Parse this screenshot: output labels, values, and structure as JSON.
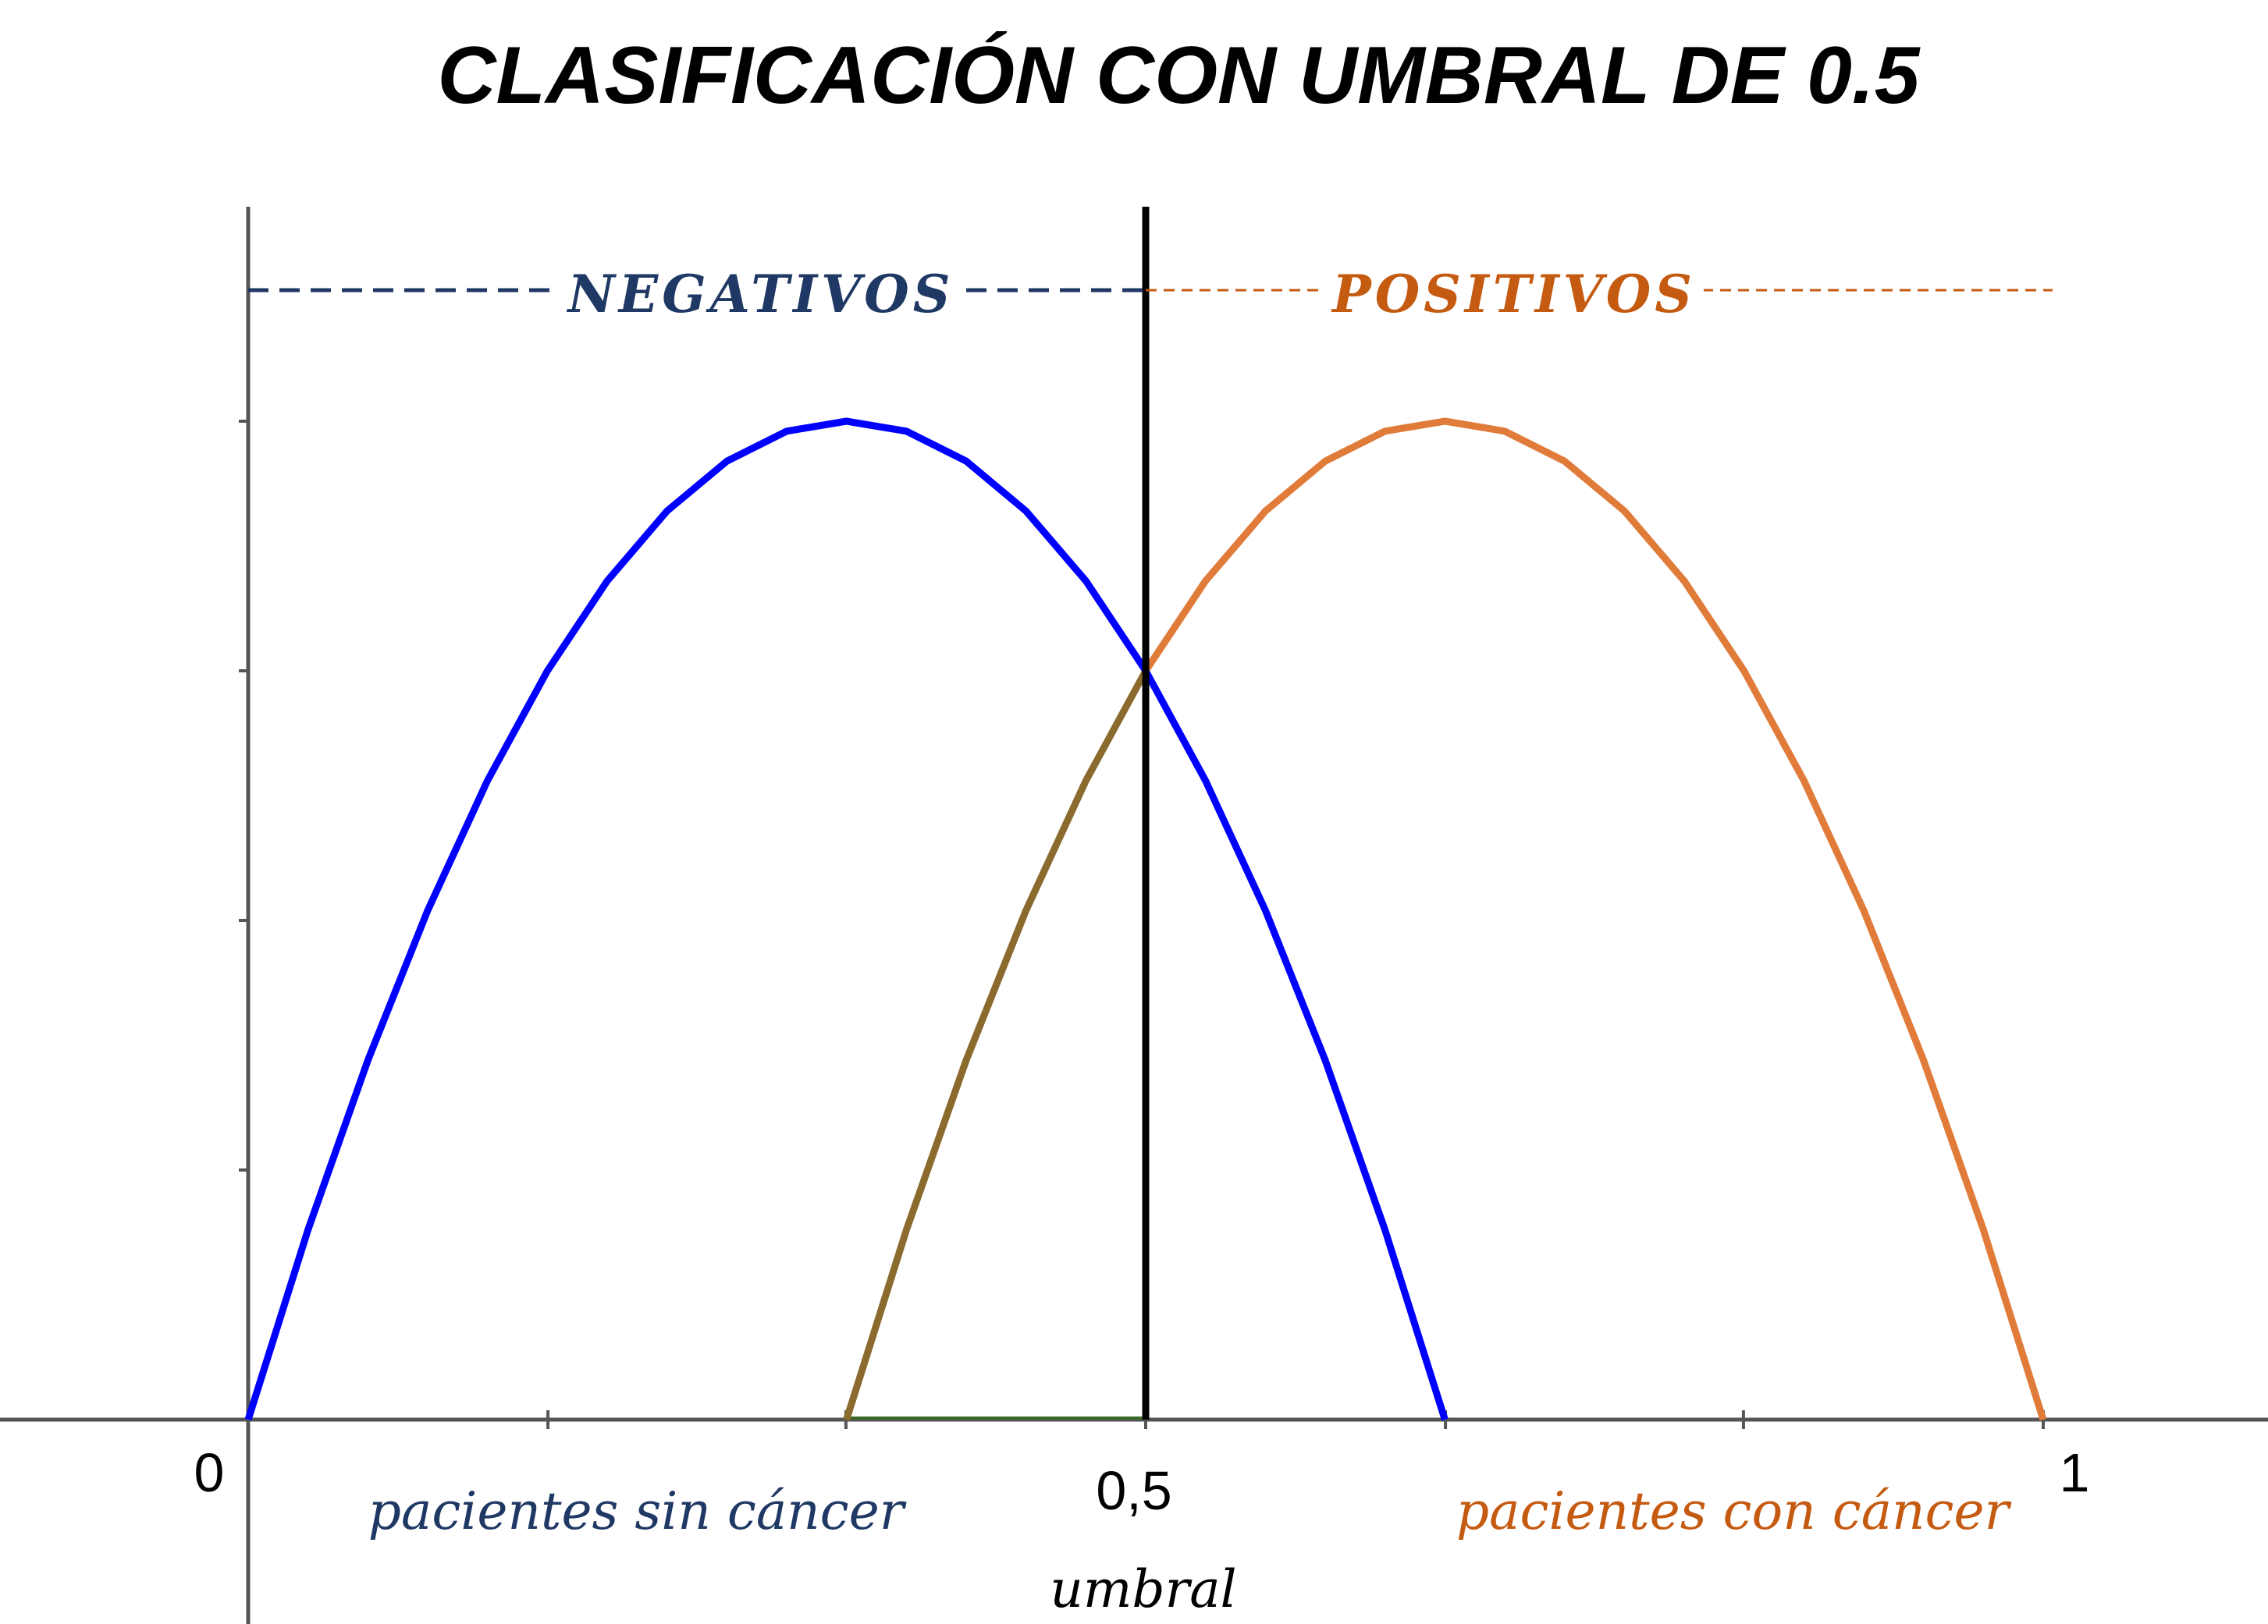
{
  "title": "CLASIFICACIÓN CON UMBRAL DE 0.5",
  "colors": {
    "negative": "#1f3864",
    "positive": "#c55a11",
    "negative_curve": "#0000ff",
    "positive_curve": "#e07b39",
    "overlap_curve": "#8b6a2e",
    "axis": "#555555",
    "threshold": "#000000"
  },
  "chart_data": {
    "type": "line",
    "title": "CLASIFICACIÓN CON UMBRAL DE 0.5",
    "xlim": [
      0,
      1.25
    ],
    "ylim": [
      0,
      1.25
    ],
    "grid": false,
    "legend": "none",
    "x_tick_labels": [
      {
        "x": 0,
        "label": "0"
      },
      {
        "x": 0.5,
        "label": "0,5"
      },
      {
        "x": 1,
        "label": "1"
      }
    ],
    "x_minor_ticks": [
      0.167,
      0.333,
      0.5,
      0.667,
      0.833,
      1
    ],
    "y_minor_ticks": [
      0.25,
      0.5,
      0.75,
      1.0
    ],
    "series": [
      {
        "x": [
          0,
          0.0333,
          0.0667,
          0.1,
          0.1333,
          0.1667,
          0.2,
          0.2333,
          0.2667,
          0.3,
          0.3333,
          0.3667,
          0.4,
          0.4333,
          0.4667,
          0.5,
          0.5333,
          0.5667,
          0.6,
          0.6333,
          0.6667
        ],
        "y": [
          0,
          0.19,
          0.36,
          0.51,
          0.64,
          0.75,
          0.84,
          0.91,
          0.96,
          0.99,
          1.0,
          0.99,
          0.96,
          0.91,
          0.84,
          0.75,
          0.64,
          0.51,
          0.36,
          0.19,
          0
        ]
      },
      {
        "x": [
          0.3333,
          0.3667,
          0.4,
          0.4333,
          0.4667,
          0.5,
          0.5333,
          0.5667,
          0.6,
          0.6333,
          0.6667,
          0.7,
          0.7333,
          0.7667,
          0.8,
          0.8333,
          0.8667,
          0.9,
          0.9333,
          0.9667,
          1.0
        ],
        "y": [
          0,
          0.19,
          0.36,
          0.51,
          0.64,
          0.75,
          0.84,
          0.91,
          0.96,
          0.99,
          1.0,
          0.99,
          0.96,
          0.91,
          0.84,
          0.75,
          0.64,
          0.51,
          0.36,
          0.19,
          0
        ]
      }
    ],
    "threshold": 0.5,
    "annotations": {
      "negatives": "NEGATIVOS",
      "positives": "POSITIVOS",
      "negative_class": "pacientes sin cáncer",
      "positive_class": "pacientes con cáncer",
      "threshold_label": "umbral"
    }
  }
}
